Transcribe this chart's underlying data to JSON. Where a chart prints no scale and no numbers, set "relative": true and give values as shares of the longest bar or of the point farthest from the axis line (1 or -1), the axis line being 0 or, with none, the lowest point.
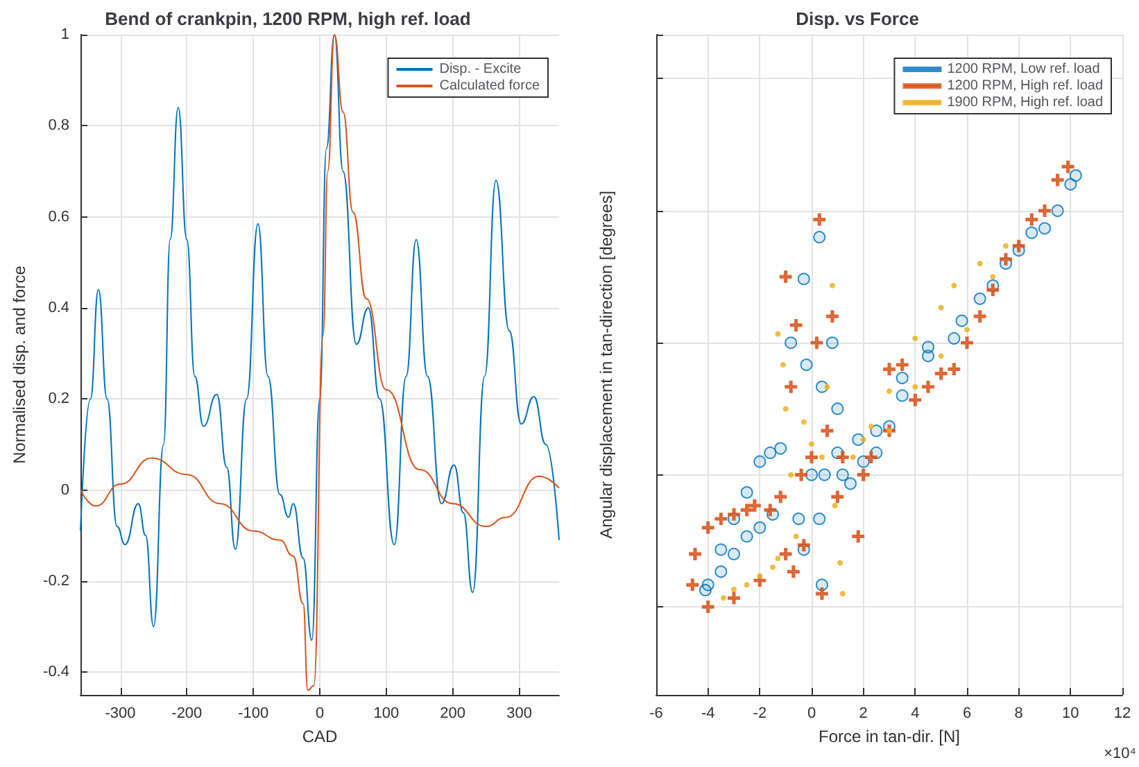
{
  "chart_data": [
    {
      "type": "line",
      "title": "Bend of crankpin, 1200 RPM, high ref. load",
      "xlabel": "CAD",
      "ylabel": "Normalised disp. and force",
      "xlim": [
        -360,
        360
      ],
      "xticks": [
        -300,
        -200,
        -100,
        0,
        100,
        200,
        300
      ],
      "ylim": [
        -0.45,
        1
      ],
      "yticks": [
        -0.4,
        -0.2,
        0,
        0.2,
        0.4,
        0.6,
        0.8,
        1
      ],
      "grid": true,
      "legend": "top right",
      "marker": "none",
      "series": [
        {
          "name": "Disp. - Excite",
          "color": "#0072bd",
          "x": [
            -360,
            -345,
            -333,
            -320,
            -305,
            -293,
            -273,
            -262,
            -250,
            -235,
            -225,
            -213,
            -200,
            -188,
            -175,
            -155,
            -140,
            -127,
            -110,
            -93,
            -78,
            -60,
            -47,
            -40,
            -25,
            -12,
            0,
            10,
            22,
            35,
            55,
            73,
            90,
            112,
            130,
            145,
            162,
            183,
            202,
            216,
            230,
            248,
            265,
            285,
            303,
            322,
            340,
            360
          ],
          "values": [
            -0.09,
            0.2,
            0.44,
            0.2,
            -0.08,
            -0.12,
            -0.03,
            -0.1,
            -0.3,
            0.1,
            0.55,
            0.84,
            0.55,
            0.25,
            0.14,
            0.21,
            0.05,
            -0.13,
            0.2,
            0.585,
            0.25,
            -0.01,
            -0.06,
            -0.03,
            -0.15,
            -0.33,
            0.2,
            0.75,
            1.0,
            0.7,
            0.32,
            0.4,
            0.2,
            -0.12,
            0.25,
            0.55,
            0.25,
            -0.03,
            0.055,
            -0.05,
            -0.225,
            0.25,
            0.68,
            0.35,
            0.145,
            0.205,
            0.1,
            -0.11
          ]
        },
        {
          "name": "Calculated force",
          "color": "#d95319",
          "x": [
            -360,
            -337,
            -300,
            -253,
            -200,
            -150,
            -100,
            -60,
            -40,
            -25,
            -18,
            -9,
            5,
            12,
            22,
            35,
            50,
            70,
            100,
            150,
            200,
            250,
            280,
            330,
            360
          ],
          "values": [
            0,
            -0.035,
            0.013,
            0.07,
            0.034,
            -0.03,
            -0.09,
            -0.11,
            -0.145,
            -0.25,
            -0.44,
            -0.43,
            0.34,
            0.7,
            1.0,
            0.83,
            0.61,
            0.42,
            0.22,
            0.045,
            -0.03,
            -0.08,
            -0.06,
            0.03,
            0.004
          ]
        }
      ]
    },
    {
      "type": "scatter",
      "title": "Disp. vs Force",
      "xlabel": "Force in tan-dir. [N]",
      "ylabel": "Angular displacement in tan-direction [degrees]",
      "xlim": [
        -6,
        12
      ],
      "xticks": [
        -6,
        -4,
        -2,
        0,
        2,
        4,
        6,
        8,
        10,
        12
      ],
      "relative": true,
      "tick_labels": "x",
      "grid": true,
      "legend": "top right",
      "annotations": [
        "×10⁴"
      ],
      "series": [
        {
          "name": "1200 RPM, Low ref. load",
          "color": "#0072bd",
          "marker": "circle",
          "x": [
            -4.1,
            -3.5,
            -3,
            -2.5,
            -2,
            -1.6,
            -1.2,
            -0.8,
            -0.5,
            -0.3,
            -0.3,
            -0.2,
            0,
            0.3,
            0.3,
            0.4,
            0.4,
            0.8,
            1,
            1.2,
            1.5,
            2,
            2.5,
            3,
            3.5,
            4.5,
            5.5,
            7,
            8,
            9,
            10,
            10.2,
            9.5,
            8.5,
            7.5,
            6.5,
            5.8,
            4.5,
            3.5,
            2.5,
            1.8,
            1,
            0.5,
            -1.5,
            -2,
            -2.5,
            -3,
            -3.5,
            -4
          ],
          "values": [
            0.038,
            0.13,
            0.2,
            0.26,
            0.33,
            0.35,
            0.36,
            0.6,
            0.2,
            0.745,
            0.13,
            0.55,
            0.3,
            0.84,
            0.2,
            0.05,
            0.5,
            0.6,
            0.45,
            0.3,
            0.28,
            0.33,
            0.35,
            0.41,
            0.52,
            0.59,
            0.61,
            0.73,
            0.81,
            0.86,
            0.96,
            0.98,
            0.9,
            0.85,
            0.78,
            0.7,
            0.65,
            0.57,
            0.48,
            0.4,
            0.38,
            0.35,
            0.3,
            0.21,
            0.18,
            0.16,
            0.12,
            0.08,
            0.05
          ]
        },
        {
          "name": "1200 RPM, High ref. load",
          "color": "#d95319",
          "marker": "cross",
          "x": [
            -4.6,
            -4.5,
            -4,
            -3.5,
            -3,
            -2.5,
            -2.2,
            -1.6,
            -1.2,
            -1,
            -0.8,
            -0.7,
            -0.6,
            -0.4,
            -0.3,
            0,
            0.2,
            0.3,
            0.4,
            0.6,
            0.8,
            1.2,
            1.8,
            2.3,
            3,
            3.5,
            4.5,
            5.5,
            6.5,
            7.5,
            8.5,
            9.5,
            9.9,
            9,
            8,
            7,
            6,
            5,
            4,
            3,
            2,
            1,
            -1,
            -2,
            -3,
            -4
          ],
          "values": [
            0.05,
            0.12,
            0.18,
            0.2,
            0.21,
            0.22,
            0.23,
            0.22,
            0.25,
            0.75,
            0.5,
            0.08,
            0.64,
            0.3,
            0.14,
            0.34,
            0.6,
            0.88,
            0.03,
            0.4,
            0.66,
            0.34,
            0.16,
            0.34,
            0.54,
            0.55,
            0.5,
            0.54,
            0.66,
            0.79,
            0.88,
            0.97,
            1.0,
            0.9,
            0.82,
            0.72,
            0.6,
            0.53,
            0.47,
            0.4,
            0.3,
            0.25,
            0.12,
            0.06,
            0.02,
            0
          ]
        },
        {
          "name": "1900 RPM, High ref. load",
          "color": "#edb120",
          "marker": "circle",
          "x": [
            -3.4,
            -3,
            -2.5,
            -2,
            -1.5,
            -1.3,
            -1.3,
            -1.1,
            -1,
            -0.8,
            -0.6,
            -0.3,
            0,
            0.4,
            0.6,
            0.8,
            0.9,
            1.1,
            1.2,
            1.6,
            2,
            2.3,
            3,
            4,
            5,
            5.5,
            6.5,
            7.5,
            7,
            6,
            5,
            4,
            3
          ],
          "values": [
            0.02,
            0.04,
            0.05,
            0.07,
            0.09,
            0.11,
            0.62,
            0.55,
            0.45,
            0.3,
            0.16,
            0.42,
            0.37,
            0.34,
            0.5,
            0.73,
            0.23,
            0.1,
            0.03,
            0.34,
            0.38,
            0.41,
            0.49,
            0.61,
            0.68,
            0.73,
            0.78,
            0.82,
            0.75,
            0.63,
            0.57,
            0.5,
            0.4
          ]
        }
      ]
    }
  ]
}
